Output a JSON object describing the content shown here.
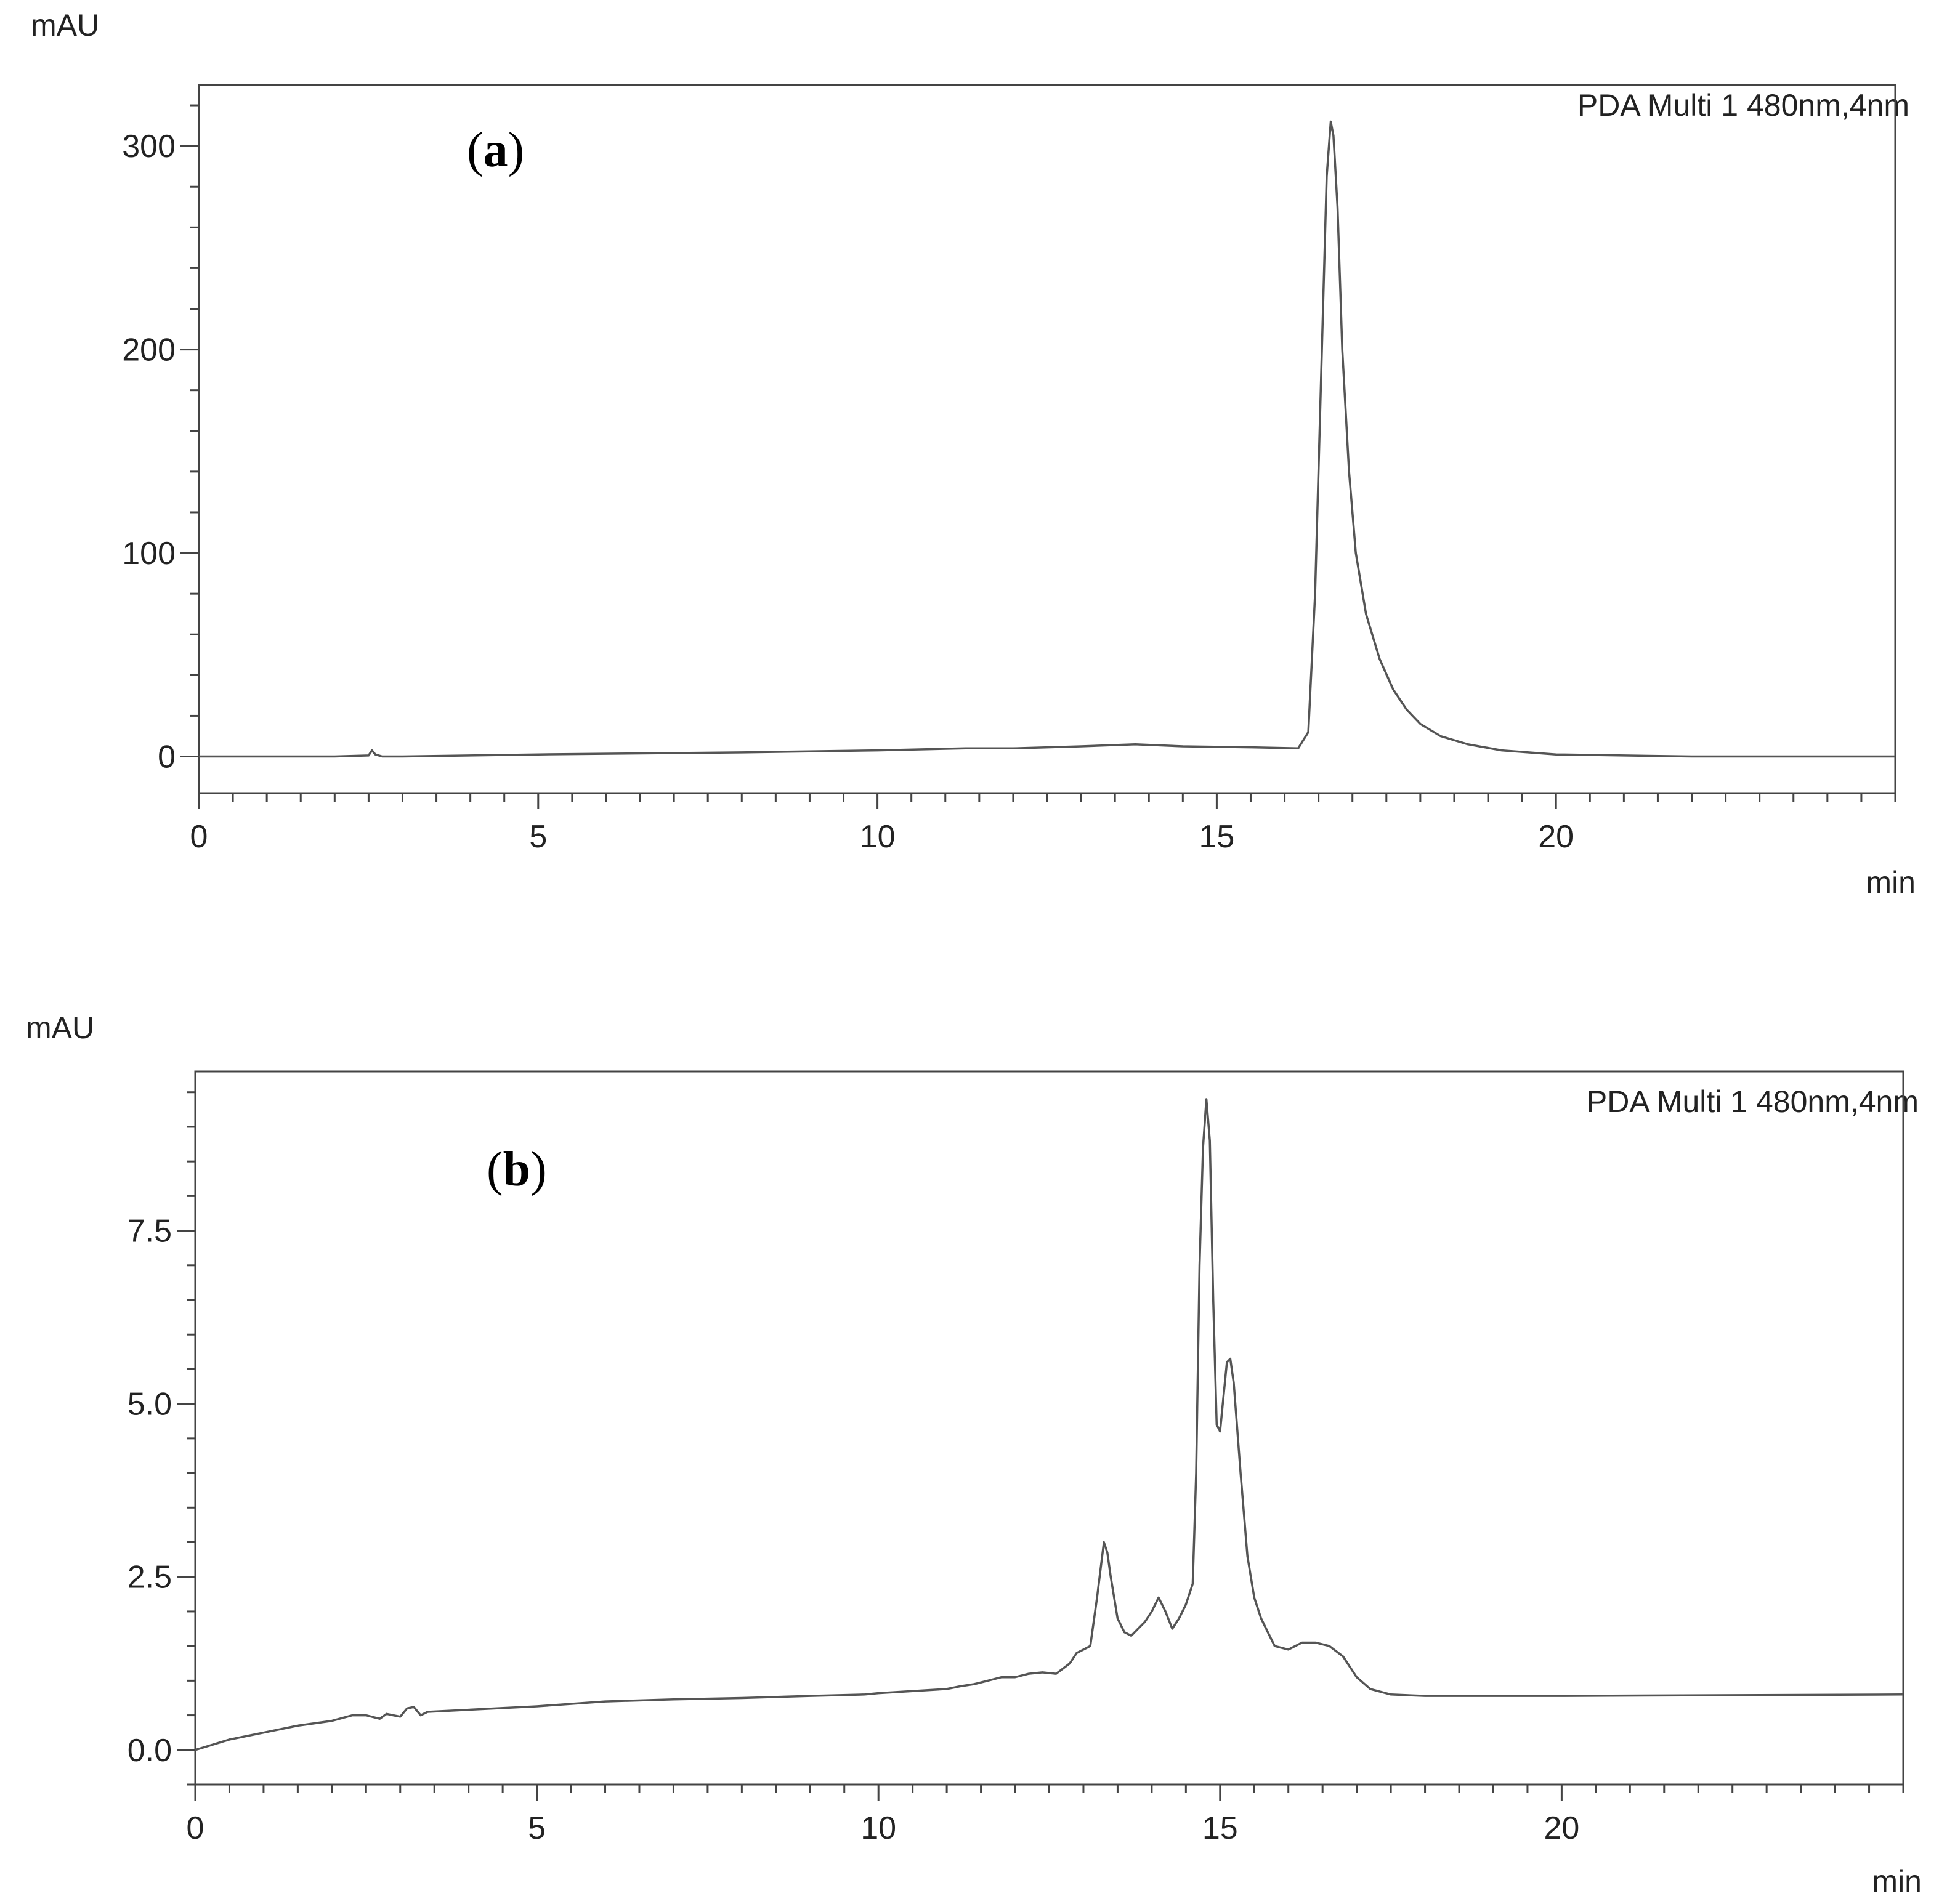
{
  "chart_data": [
    {
      "type": "line",
      "panel_label": "(a)",
      "tag_paren_open": "(",
      "tag_letter": "a",
      "tag_paren_close": ")",
      "legend_text": "PDA Multi 1 480nm,4nm",
      "xlabel": "min",
      "ylabel": "mAU",
      "xlim": [
        0,
        25
      ],
      "ylim": [
        -18,
        330
      ],
      "x_ticks": [
        0,
        5,
        10,
        15,
        20
      ],
      "x_tick_labels": [
        "0",
        "5",
        "10",
        "15",
        "20"
      ],
      "y_ticks": [
        0,
        100,
        200,
        300
      ],
      "y_tick_labels": [
        "0",
        "100",
        "200",
        "300"
      ],
      "x_minor_step": 0.5,
      "y_minor_step": 20,
      "line_color": "#555555",
      "series": [
        {
          "x": [
            0,
            2,
            2.5,
            2.55,
            2.6,
            2.7,
            3,
            5,
            8,
            10,
            11.3,
            12,
            13,
            13.8,
            14.5,
            15.5,
            16.2,
            16.35,
            16.45,
            16.55,
            16.62,
            16.68,
            16.72,
            16.78,
            16.85,
            16.95,
            17.05,
            17.2,
            17.4,
            17.6,
            17.8,
            18,
            18.3,
            18.7,
            19.2,
            20,
            21,
            22,
            25
          ],
          "y": [
            0,
            0,
            0.5,
            3,
            1,
            0,
            0,
            1,
            2,
            3,
            4,
            4,
            5,
            6,
            5,
            4.5,
            4,
            12,
            80,
            200,
            285,
            312,
            305,
            270,
            200,
            140,
            100,
            70,
            48,
            33,
            23,
            16,
            10,
            6,
            3,
            1,
            0.5,
            0,
            0
          ]
        }
      ]
    },
    {
      "type": "line",
      "panel_label": "(b)",
      "tag_paren_open": "(",
      "tag_letter": "b",
      "tag_paren_close": ")",
      "legend_text": "PDA Multi 1 480nm,4nm",
      "xlabel": "min",
      "ylabel": "mAU",
      "xlim": [
        0,
        25
      ],
      "ylim": [
        -0.5,
        9.8
      ],
      "x_ticks": [
        0,
        5,
        10,
        15,
        20
      ],
      "x_tick_labels": [
        "0",
        "5",
        "10",
        "15",
        "20"
      ],
      "y_ticks": [
        0,
        2.5,
        5,
        7.5
      ],
      "y_tick_labels": [
        "0.0",
        "2.5",
        "5.0",
        "7.5"
      ],
      "x_minor_step": 0.5,
      "y_minor_step": 0.5,
      "line_color": "#555555",
      "series": [
        {
          "x": [
            0,
            0.5,
            1,
            1.5,
            2,
            2.3,
            2.5,
            2.7,
            2.8,
            2.9,
            3,
            3.1,
            3.2,
            3.3,
            3.4,
            4,
            5,
            6,
            7,
            8,
            9,
            9.8,
            10,
            10.5,
            11,
            11.2,
            11.4,
            11.6,
            11.8,
            12,
            12.2,
            12.4,
            12.6,
            12.8,
            12.9,
            13,
            13.1,
            13.2,
            13.3,
            13.35,
            13.4,
            13.5,
            13.6,
            13.7,
            13.8,
            13.9,
            14,
            14.1,
            14.2,
            14.3,
            14.4,
            14.5,
            14.6,
            14.65,
            14.7,
            14.75,
            14.8,
            14.85,
            14.9,
            14.95,
            15,
            15.05,
            15.1,
            15.15,
            15.2,
            15.3,
            15.4,
            15.5,
            15.6,
            15.7,
            15.8,
            16,
            16.2,
            16.4,
            16.6,
            16.8,
            17,
            17.2,
            17.5,
            18,
            20,
            25
          ],
          "y": [
            0,
            0.15,
            0.25,
            0.35,
            0.42,
            0.5,
            0.5,
            0.45,
            0.52,
            0.5,
            0.48,
            0.6,
            0.62,
            0.5,
            0.55,
            0.58,
            0.63,
            0.7,
            0.73,
            0.75,
            0.78,
            0.8,
            0.82,
            0.85,
            0.88,
            0.92,
            0.95,
            1,
            1.05,
            1.05,
            1.1,
            1.12,
            1.1,
            1.25,
            1.4,
            1.45,
            1.5,
            2.2,
            3,
            2.85,
            2.5,
            1.9,
            1.7,
            1.65,
            1.75,
            1.85,
            2,
            2.2,
            2,
            1.75,
            1.9,
            2.1,
            2.4,
            4,
            7,
            8.7,
            9.4,
            8.8,
            6.5,
            4.7,
            4.6,
            5.1,
            5.6,
            5.65,
            5.3,
            4,
            2.8,
            2.2,
            1.9,
            1.7,
            1.5,
            1.45,
            1.55,
            1.55,
            1.5,
            1.35,
            1.05,
            0.88,
            0.8,
            0.78,
            0.78,
            0.8
          ]
        }
      ]
    }
  ]
}
